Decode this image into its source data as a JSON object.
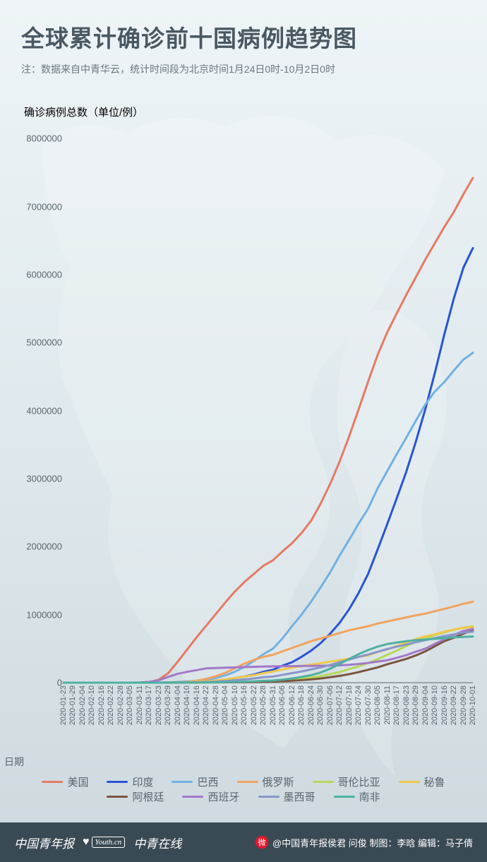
{
  "background_gradient": [
    "#eef4f7",
    "#dfe9ed",
    "#cdd9de"
  ],
  "map_silhouette_color": "#ffffff",
  "header": {
    "title": "全球累计确诊前十国病例趋势图",
    "title_color": "#4a5862",
    "note": "注：数据来自中青华云，统计时间段为北京时间1月24日0时-10月2日0时",
    "note_color": "#6b7880"
  },
  "chart": {
    "type": "line",
    "y_axis_label": "确诊病例总数（单位/例）",
    "y_axis_label_color": "#5a666e",
    "x_axis_label": "日期",
    "ylim": [
      0,
      8200000
    ],
    "y_ticks": [
      0,
      1000000,
      2000000,
      3000000,
      4000000,
      5000000,
      6000000,
      7000000,
      8000000
    ],
    "baseline_color": "#9aa5ab",
    "gridline_color": "#b8c3c9",
    "axis_font_size": 13,
    "x_dates": [
      "2020-01-23",
      "2020-01-29",
      "2020-02-04",
      "2020-02-10",
      "2020-02-16",
      "2020-02-22",
      "2020-02-28",
      "2020-03-05",
      "2020-03-11",
      "2020-03-17",
      "2020-03-23",
      "2020-03-29",
      "2020-04-04",
      "2020-04-10",
      "2020-04-16",
      "2020-04-22",
      "2020-04-28",
      "2020-05-04",
      "2020-05-10",
      "2020-05-16",
      "2020-05-22",
      "2020-05-28",
      "2020-05-31",
      "2020-06-06",
      "2020-06-12",
      "2020-06-18",
      "2020-06-24",
      "2020-06-30",
      "2020-07-06",
      "2020-07-12",
      "2020-07-18",
      "2020-07-24",
      "2020-07-30",
      "2020-08-05",
      "2020-08-11",
      "2020-08-17",
      "2020-08-23",
      "2020-08-29",
      "2020-09-04",
      "2020-09-10",
      "2020-09-16",
      "2020-09-22",
      "2020-09-28",
      "2020-10-01"
    ],
    "line_width": 3,
    "series": [
      {
        "key": "usa",
        "label": "美国",
        "color": "#e57a64",
        "values": [
          0,
          0,
          0,
          0,
          0,
          0,
          0,
          200,
          1200,
          6500,
          44000,
          140000,
          310000,
          490000,
          670000,
          840000,
          1010000,
          1180000,
          1340000,
          1480000,
          1600000,
          1720000,
          1800000,
          1930000,
          2050000,
          2200000,
          2380000,
          2630000,
          2920000,
          3250000,
          3620000,
          4020000,
          4430000,
          4820000,
          5150000,
          5430000,
          5700000,
          5960000,
          6220000,
          6460000,
          6700000,
          6920000,
          7180000,
          7420000
        ]
      },
      {
        "key": "india",
        "label": "印度",
        "color": "#2a53d6",
        "values": [
          0,
          0,
          0,
          0,
          0,
          0,
          0,
          30,
          60,
          140,
          470,
          1000,
          3000,
          7500,
          13000,
          21000,
          31000,
          46000,
          67000,
          90000,
          120000,
          160000,
          190000,
          250000,
          300000,
          380000,
          470000,
          580000,
          720000,
          880000,
          1080000,
          1320000,
          1600000,
          1960000,
          2330000,
          2710000,
          3100000,
          3540000,
          4020000,
          4550000,
          5120000,
          5650000,
          6100000,
          6390000
        ]
      },
      {
        "key": "brazil",
        "label": "巴西",
        "color": "#72b1e3",
        "values": [
          0,
          0,
          0,
          0,
          0,
          0,
          0,
          0,
          50,
          300,
          1900,
          4300,
          10000,
          19000,
          30000,
          45000,
          68000,
          108000,
          160000,
          230000,
          320000,
          420000,
          500000,
          650000,
          830000,
          1000000,
          1190000,
          1400000,
          1620000,
          1870000,
          2100000,
          2340000,
          2560000,
          2860000,
          3110000,
          3360000,
          3600000,
          3850000,
          4090000,
          4280000,
          4420000,
          4590000,
          4750000,
          4850000
        ]
      },
      {
        "key": "russia",
        "label": "俄罗斯",
        "color": "#f2a35e",
        "values": [
          0,
          0,
          0,
          0,
          0,
          0,
          0,
          0,
          20,
          110,
          440,
          1800,
          4700,
          12000,
          28000,
          58000,
          94000,
          145000,
          210000,
          280000,
          335000,
          380000,
          410000,
          460000,
          510000,
          560000,
          610000,
          650000,
          690000,
          730000,
          770000,
          800000,
          830000,
          870000,
          900000,
          930000,
          960000,
          990000,
          1015000,
          1050000,
          1085000,
          1120000,
          1160000,
          1190000
        ]
      },
      {
        "key": "colombia",
        "label": "哥伦比亚",
        "color": "#b6d957",
        "values": [
          0,
          0,
          0,
          0,
          0,
          0,
          0,
          0,
          0,
          60,
          280,
          700,
          1400,
          2500,
          3200,
          4300,
          5600,
          7700,
          11000,
          15000,
          20000,
          25000,
          29000,
          38000,
          48000,
          60000,
          75000,
          98000,
          125000,
          155000,
          200000,
          240000,
          290000,
          345000,
          410000,
          470000,
          540000,
          600000,
          650000,
          700000,
          740000,
          780000,
          810000,
          830000
        ]
      },
      {
        "key": "peru",
        "label": "秘鲁",
        "color": "#f0c84a",
        "values": [
          0,
          0,
          0,
          0,
          0,
          0,
          0,
          0,
          15,
          120,
          400,
          950,
          1800,
          6000,
          13000,
          20000,
          33000,
          47000,
          68000,
          88000,
          111000,
          140000,
          165000,
          195000,
          220000,
          245000,
          265000,
          285000,
          310000,
          330000,
          355000,
          380000,
          400000,
          450000,
          490000,
          540000,
          590000,
          640000,
          680000,
          710000,
          750000,
          780000,
          805000,
          820000
        ]
      },
      {
        "key": "argentina",
        "label": "阿根廷",
        "color": "#7a553e",
        "values": [
          0,
          0,
          0,
          0,
          0,
          0,
          0,
          0,
          20,
          80,
          300,
          750,
          1400,
          2000,
          2700,
          3300,
          4000,
          4900,
          6000,
          7800,
          10000,
          14000,
          16800,
          22000,
          29000,
          37000,
          48000,
          62000,
          80000,
          100000,
          125000,
          155000,
          190000,
          225000,
          270000,
          310000,
          350000,
          400000,
          460000,
          535000,
          610000,
          660000,
          720000,
          770000
        ]
      },
      {
        "key": "spain",
        "label": "西班牙",
        "color": "#a478c9",
        "values": [
          0,
          0,
          0,
          0,
          0,
          0,
          0,
          200,
          2200,
          12000,
          35000,
          85000,
          130000,
          160000,
          185000,
          210000,
          215000,
          220000,
          225000,
          230000,
          234000,
          237000,
          240000,
          241000,
          243000,
          245000,
          247000,
          249000,
          251000,
          255000,
          262000,
          275000,
          290000,
          310000,
          330000,
          365000,
          405000,
          455000,
          500000,
          570000,
          640000,
          700000,
          760000,
          790000
        ]
      },
      {
        "key": "mexico",
        "label": "墨西哥",
        "color": "#8896c9",
        "values": [
          0,
          0,
          0,
          0,
          0,
          0,
          0,
          5,
          15,
          100,
          370,
          1000,
          1900,
          3800,
          6300,
          10000,
          16000,
          25000,
          35000,
          48000,
          62000,
          80000,
          90000,
          115000,
          140000,
          165000,
          195000,
          225000,
          260000,
          300000,
          340000,
          380000,
          415000,
          455000,
          495000,
          530000,
          560000,
          595000,
          625000,
          655000,
          685000,
          710000,
          735000,
          750000
        ]
      },
      {
        "key": "south_africa",
        "label": "南非",
        "color": "#4fb0a0",
        "values": [
          0,
          0,
          0,
          0,
          0,
          0,
          0,
          0,
          20,
          85,
          400,
          1300,
          1600,
          2000,
          2700,
          3600,
          5000,
          7200,
          10000,
          14000,
          20000,
          27000,
          33000,
          45000,
          62000,
          84000,
          110000,
          150000,
          205000,
          275000,
          350000,
          420000,
          480000,
          530000,
          568000,
          590000,
          610000,
          625000,
          635000,
          645000,
          655000,
          665000,
          672000,
          678000
        ]
      }
    ]
  },
  "legend_font_size": 15,
  "footer": {
    "bg_color": "#3a4a54",
    "text_color": "#ffffff",
    "left_brands": [
      "中国青年报",
      "Youth.cn",
      "中青在线"
    ],
    "right_text": "@中国青年报侯君 问俊 制图：李晗 编辑：马子倩"
  }
}
